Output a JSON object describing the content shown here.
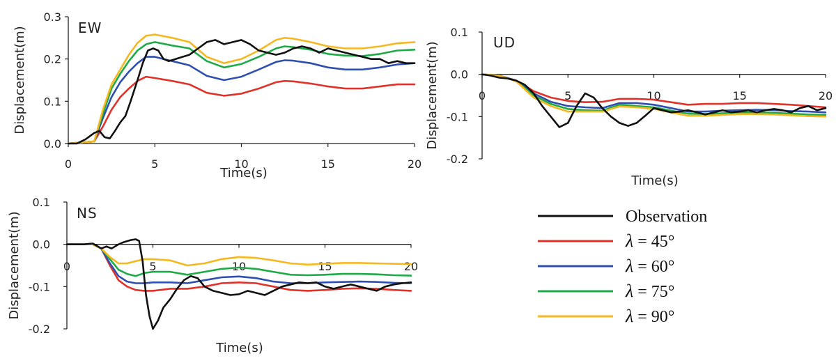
{
  "chart_data": [
    {
      "type": "line",
      "title": "EW",
      "xlabel": "Time(s)",
      "ylabel": "Displacement(m)",
      "xlim": [
        0,
        20
      ],
      "ylim": [
        0,
        0.3
      ],
      "xticks": [
        0,
        5,
        10,
        15,
        20
      ],
      "yticks": [
        0.0,
        0.1,
        0.2,
        0.3
      ],
      "xtick_labels": [
        "0",
        "5",
        "10",
        "15",
        "20"
      ],
      "ytick_labels": [
        "0.0",
        "0.1",
        "0.2",
        "0.3"
      ],
      "series": [
        {
          "name": "Observation",
          "color": "#111111",
          "x": [
            0,
            0.5,
            1,
            1.5,
            1.8,
            2.1,
            2.4,
            2.7,
            3.0,
            3.3,
            3.6,
            4.0,
            4.3,
            4.6,
            4.9,
            5.2,
            5.5,
            5.8,
            6.2,
            6.6,
            7.0,
            7.5,
            8.0,
            8.5,
            9.0,
            9.5,
            10.0,
            10.5,
            11.0,
            11.5,
            12.0,
            12.5,
            13.0,
            13.5,
            14.0,
            14.5,
            15.0,
            15.5,
            16.0,
            16.5,
            17.0,
            17.5,
            18.0,
            18.5,
            19.0,
            19.5,
            20
          ],
          "y": [
            0.0,
            0.0,
            0.01,
            0.025,
            0.03,
            0.015,
            0.012,
            0.03,
            0.05,
            0.065,
            0.1,
            0.15,
            0.19,
            0.22,
            0.225,
            0.22,
            0.2,
            0.195,
            0.2,
            0.205,
            0.21,
            0.225,
            0.24,
            0.245,
            0.235,
            0.24,
            0.245,
            0.235,
            0.22,
            0.215,
            0.21,
            0.215,
            0.225,
            0.23,
            0.225,
            0.215,
            0.225,
            0.22,
            0.215,
            0.21,
            0.205,
            0.2,
            0.2,
            0.19,
            0.195,
            0.19,
            0.19
          ]
        },
        {
          "name": "λ = 45°",
          "color": "#e03228",
          "x": [
            0,
            1.5,
            2.0,
            2.5,
            3.0,
            3.5,
            4.0,
            4.5,
            5.0,
            6.0,
            7.0,
            8.0,
            9.0,
            10.0,
            11.0,
            12.0,
            12.5,
            13.0,
            14.0,
            15.0,
            16.0,
            17.0,
            18.0,
            19.0,
            20
          ],
          "y": [
            0.0,
            0.005,
            0.04,
            0.08,
            0.11,
            0.13,
            0.148,
            0.158,
            0.155,
            0.148,
            0.14,
            0.12,
            0.113,
            0.118,
            0.13,
            0.145,
            0.148,
            0.147,
            0.142,
            0.135,
            0.13,
            0.13,
            0.135,
            0.14,
            0.14
          ]
        },
        {
          "name": "λ = 60°",
          "color": "#2f4fb0",
          "x": [
            0,
            1.5,
            2.0,
            2.5,
            3.0,
            3.5,
            4.0,
            4.5,
            5.0,
            6.0,
            7.0,
            8.0,
            9.0,
            10.0,
            11.0,
            12.0,
            12.5,
            13.0,
            14.0,
            15.0,
            16.0,
            17.0,
            18.0,
            19.0,
            20
          ],
          "y": [
            0.0,
            0.005,
            0.06,
            0.11,
            0.145,
            0.17,
            0.19,
            0.205,
            0.205,
            0.195,
            0.185,
            0.16,
            0.15,
            0.158,
            0.175,
            0.193,
            0.197,
            0.196,
            0.19,
            0.18,
            0.175,
            0.175,
            0.18,
            0.187,
            0.19
          ]
        },
        {
          "name": "λ = 75°",
          "color": "#1faa48",
          "x": [
            0,
            1.5,
            2.0,
            2.5,
            3.0,
            3.5,
            4.0,
            4.5,
            5.0,
            6.0,
            7.0,
            8.0,
            9.0,
            10.0,
            11.0,
            12.0,
            12.5,
            13.0,
            14.0,
            15.0,
            16.0,
            17.0,
            18.0,
            19.0,
            20
          ],
          "y": [
            0.0,
            0.005,
            0.07,
            0.13,
            0.165,
            0.195,
            0.22,
            0.235,
            0.24,
            0.232,
            0.225,
            0.195,
            0.18,
            0.188,
            0.205,
            0.225,
            0.23,
            0.228,
            0.222,
            0.212,
            0.208,
            0.207,
            0.212,
            0.22,
            0.222
          ]
        },
        {
          "name": "λ = 90°",
          "color": "#f5b820",
          "x": [
            0,
            1.5,
            2.0,
            2.5,
            3.0,
            3.5,
            4.0,
            4.5,
            5.0,
            6.0,
            7.0,
            8.0,
            9.0,
            10.0,
            11.0,
            12.0,
            12.5,
            13.0,
            14.0,
            15.0,
            16.0,
            17.0,
            18.0,
            19.0,
            20
          ],
          "y": [
            0.0,
            0.005,
            0.08,
            0.14,
            0.175,
            0.21,
            0.238,
            0.255,
            0.258,
            0.25,
            0.24,
            0.205,
            0.19,
            0.2,
            0.22,
            0.245,
            0.25,
            0.248,
            0.24,
            0.23,
            0.225,
            0.225,
            0.23,
            0.237,
            0.24
          ]
        }
      ]
    },
    {
      "type": "line",
      "title": "UD",
      "xlabel": "Time(s)",
      "ylabel": "Displacement(m)",
      "xlim": [
        0,
        20
      ],
      "ylim": [
        -0.2,
        0.1
      ],
      "xticks": [
        0,
        5,
        10,
        15,
        20
      ],
      "yticks": [
        0.1,
        0.0,
        -0.1,
        -0.2
      ],
      "xtick_labels": [
        "0",
        "5",
        "10",
        "15",
        "20"
      ],
      "ytick_labels": [
        "0.1",
        "0.0",
        "-0.1",
        "-0.2"
      ],
      "series": [
        {
          "name": "Observation",
          "color": "#111111",
          "x": [
            0,
            0.5,
            1.0,
            1.5,
            2.0,
            2.5,
            3.0,
            3.5,
            4.0,
            4.5,
            5.0,
            5.5,
            6.0,
            6.5,
            7.0,
            7.5,
            8.0,
            8.5,
            9.0,
            9.5,
            10.0,
            10.5,
            11.0,
            11.5,
            12.0,
            12.5,
            13.0,
            13.5,
            14.0,
            14.5,
            15.0,
            15.5,
            16.0,
            16.5,
            17.0,
            17.5,
            18.0,
            18.5,
            19.0,
            19.5,
            20
          ],
          "y": [
            0.0,
            -0.003,
            -0.008,
            -0.01,
            -0.015,
            -0.025,
            -0.045,
            -0.075,
            -0.1,
            -0.125,
            -0.115,
            -0.075,
            -0.045,
            -0.055,
            -0.08,
            -0.1,
            -0.115,
            -0.122,
            -0.115,
            -0.098,
            -0.08,
            -0.085,
            -0.09,
            -0.088,
            -0.085,
            -0.09,
            -0.095,
            -0.09,
            -0.085,
            -0.09,
            -0.088,
            -0.085,
            -0.09,
            -0.085,
            -0.082,
            -0.085,
            -0.09,
            -0.08,
            -0.075,
            -0.085,
            -0.08
          ]
        },
        {
          "name": "λ = 45°",
          "color": "#e03228",
          "x": [
            0,
            1.0,
            2.0,
            3.0,
            4.0,
            5.0,
            6.0,
            7.0,
            8.0,
            9.0,
            10.0,
            11.0,
            12.0,
            13.0,
            14.0,
            15.0,
            16.0,
            17.0,
            18.0,
            19.0,
            20
          ],
          "y": [
            0.0,
            -0.003,
            -0.015,
            -0.04,
            -0.055,
            -0.063,
            -0.066,
            -0.065,
            -0.058,
            -0.058,
            -0.06,
            -0.066,
            -0.072,
            -0.07,
            -0.07,
            -0.068,
            -0.068,
            -0.07,
            -0.072,
            -0.075,
            -0.078
          ]
        },
        {
          "name": "λ = 60°",
          "color": "#2f4fb0",
          "x": [
            0,
            1.0,
            2.0,
            3.0,
            4.0,
            5.0,
            6.0,
            7.0,
            8.0,
            9.0,
            10.0,
            11.0,
            12.0,
            13.0,
            14.0,
            15.0,
            16.0,
            17.0,
            18.0,
            19.0,
            20
          ],
          "y": [
            0.0,
            -0.003,
            -0.015,
            -0.045,
            -0.065,
            -0.075,
            -0.078,
            -0.08,
            -0.068,
            -0.068,
            -0.072,
            -0.08,
            -0.088,
            -0.088,
            -0.086,
            -0.085,
            -0.084,
            -0.085,
            -0.087,
            -0.088,
            -0.09
          ]
        },
        {
          "name": "λ = 75°",
          "color": "#1faa48",
          "x": [
            0,
            1.0,
            2.0,
            3.0,
            4.0,
            5.0,
            6.0,
            7.0,
            8.0,
            9.0,
            10.0,
            11.0,
            12.0,
            13.0,
            14.0,
            15.0,
            16.0,
            17.0,
            18.0,
            19.0,
            20
          ],
          "y": [
            0.0,
            -0.003,
            -0.016,
            -0.05,
            -0.07,
            -0.082,
            -0.085,
            -0.086,
            -0.072,
            -0.075,
            -0.078,
            -0.086,
            -0.093,
            -0.094,
            -0.092,
            -0.09,
            -0.09,
            -0.091,
            -0.093,
            -0.095,
            -0.096
          ]
        },
        {
          "name": "λ = 90°",
          "color": "#f5b820",
          "x": [
            0,
            1.0,
            2.0,
            3.0,
            4.0,
            5.0,
            6.0,
            7.0,
            8.0,
            9.0,
            10.0,
            11.0,
            12.0,
            13.0,
            14.0,
            15.0,
            16.0,
            17.0,
            18.0,
            19.0,
            20
          ],
          "y": [
            0.0,
            -0.003,
            -0.017,
            -0.055,
            -0.075,
            -0.088,
            -0.088,
            -0.088,
            -0.076,
            -0.078,
            -0.082,
            -0.09,
            -0.098,
            -0.098,
            -0.096,
            -0.094,
            -0.094,
            -0.095,
            -0.097,
            -0.099,
            -0.1
          ]
        }
      ]
    },
    {
      "type": "line",
      "title": "NS",
      "xlabel": "Time(s)",
      "ylabel": "Displacement(m)",
      "xlim": [
        0,
        20
      ],
      "ylim": [
        -0.2,
        0.1
      ],
      "xticks": [
        0,
        5,
        10,
        15,
        20
      ],
      "yticks": [
        0.1,
        0.0,
        -0.1,
        -0.2
      ],
      "xtick_labels": [
        "0",
        "5",
        "10",
        "15",
        "20"
      ],
      "ytick_labels": [
        "0.1",
        "0.0",
        "-0.1",
        "-0.2"
      ],
      "series": [
        {
          "name": "Observation",
          "color": "#111111",
          "x": [
            0,
            0.5,
            1.0,
            1.5,
            1.8,
            2.0,
            2.3,
            2.6,
            3.0,
            3.3,
            3.7,
            4.0,
            4.2,
            4.4,
            4.6,
            4.8,
            5.0,
            5.3,
            5.6,
            6.0,
            6.4,
            6.8,
            7.2,
            7.6,
            8.0,
            8.5,
            9.0,
            9.5,
            10.0,
            10.5,
            11.0,
            11.5,
            12.0,
            12.5,
            13.0,
            13.5,
            14.0,
            14.5,
            15.0,
            15.5,
            16.0,
            16.5,
            17.0,
            17.5,
            18.0,
            18.5,
            19.0,
            19.5,
            20
          ],
          "y": [
            0.0,
            0.0,
            0.0,
            0.002,
            -0.005,
            -0.01,
            -0.005,
            -0.01,
            0.0,
            0.005,
            0.01,
            0.012,
            0.008,
            -0.04,
            -0.12,
            -0.17,
            -0.2,
            -0.18,
            -0.15,
            -0.13,
            -0.105,
            -0.085,
            -0.075,
            -0.08,
            -0.1,
            -0.11,
            -0.115,
            -0.12,
            -0.118,
            -0.11,
            -0.115,
            -0.12,
            -0.11,
            -0.1,
            -0.095,
            -0.09,
            -0.092,
            -0.09,
            -0.1,
            -0.105,
            -0.1,
            -0.095,
            -0.1,
            -0.105,
            -0.11,
            -0.1,
            -0.095,
            -0.092,
            -0.09
          ]
        },
        {
          "name": "λ = 45°",
          "color": "#e03228",
          "x": [
            0,
            1.0,
            1.5,
            2.0,
            2.5,
            3.0,
            3.5,
            4.0,
            4.5,
            5.0,
            6.0,
            7.0,
            8.0,
            9.0,
            10.0,
            11.0,
            12.0,
            13.0,
            14.0,
            15.0,
            16.0,
            17.0,
            18.0,
            19.0,
            20
          ],
          "y": [
            0.0,
            0.0,
            0.0,
            -0.01,
            -0.05,
            -0.085,
            -0.1,
            -0.108,
            -0.11,
            -0.11,
            -0.105,
            -0.105,
            -0.1,
            -0.092,
            -0.09,
            -0.092,
            -0.1,
            -0.108,
            -0.11,
            -0.108,
            -0.105,
            -0.104,
            -0.105,
            -0.108,
            -0.11
          ]
        },
        {
          "name": "λ = 60°",
          "color": "#2f4fb0",
          "x": [
            0,
            1.0,
            1.5,
            2.0,
            2.5,
            3.0,
            3.5,
            4.0,
            4.5,
            5.0,
            6.0,
            7.0,
            8.0,
            9.0,
            10.0,
            11.0,
            12.0,
            13.0,
            14.0,
            15.0,
            16.0,
            17.0,
            18.0,
            19.0,
            20
          ],
          "y": [
            0.0,
            0.0,
            0.0,
            -0.01,
            -0.045,
            -0.075,
            -0.088,
            -0.092,
            -0.092,
            -0.09,
            -0.09,
            -0.092,
            -0.085,
            -0.078,
            -0.076,
            -0.08,
            -0.088,
            -0.092,
            -0.092,
            -0.09,
            -0.089,
            -0.088,
            -0.089,
            -0.091,
            -0.092
          ]
        },
        {
          "name": "λ = 75°",
          "color": "#1faa48",
          "x": [
            0,
            1.0,
            1.5,
            2.0,
            2.5,
            3.0,
            3.5,
            4.0,
            4.5,
            5.0,
            6.0,
            7.0,
            8.0,
            9.0,
            10.0,
            11.0,
            12.0,
            13.0,
            14.0,
            15.0,
            16.0,
            17.0,
            18.0,
            19.0,
            20
          ],
          "y": [
            0.0,
            0.0,
            0.0,
            -0.01,
            -0.035,
            -0.06,
            -0.07,
            -0.075,
            -0.068,
            -0.065,
            -0.065,
            -0.072,
            -0.065,
            -0.058,
            -0.055,
            -0.058,
            -0.065,
            -0.072,
            -0.073,
            -0.072,
            -0.07,
            -0.07,
            -0.071,
            -0.073,
            -0.074
          ]
        },
        {
          "name": "λ = 90°",
          "color": "#f5b820",
          "x": [
            0,
            1.0,
            1.5,
            2.0,
            2.5,
            3.0,
            3.5,
            4.0,
            4.5,
            5.0,
            6.0,
            7.0,
            8.0,
            9.0,
            10.0,
            11.0,
            12.0,
            13.0,
            14.0,
            15.0,
            16.0,
            17.0,
            18.0,
            19.0,
            20
          ],
          "y": [
            0.0,
            0.0,
            0.0,
            -0.01,
            -0.03,
            -0.045,
            -0.045,
            -0.04,
            -0.035,
            -0.035,
            -0.038,
            -0.05,
            -0.045,
            -0.035,
            -0.03,
            -0.032,
            -0.038,
            -0.045,
            -0.048,
            -0.046,
            -0.044,
            -0.044,
            -0.045,
            -0.046,
            -0.047
          ]
        }
      ]
    }
  ],
  "legend": {
    "placement": "bottom-right",
    "items": [
      {
        "label": "Observation",
        "color": "#111111"
      },
      {
        "label": "λ = 45°",
        "color": "#e03228"
      },
      {
        "label": "λ = 60°",
        "color": "#2f4fb0"
      },
      {
        "label": "λ = 75°",
        "color": "#1faa48"
      },
      {
        "label": "λ = 90°",
        "color": "#f5b820"
      }
    ]
  }
}
